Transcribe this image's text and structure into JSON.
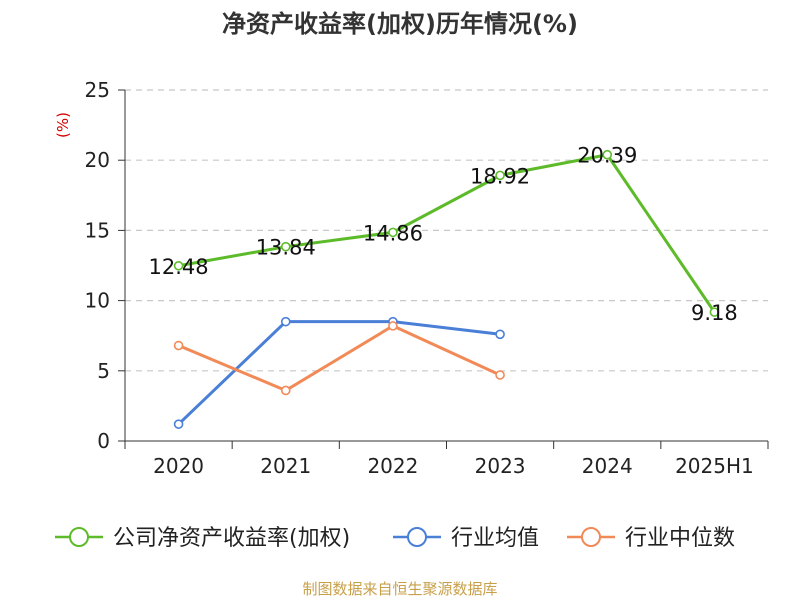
{
  "chart_data": {
    "type": "line",
    "title": "净资产收益率(加权)历年情况(%)",
    "ylabel": "(%)",
    "xlabel": "",
    "categories": [
      "2020",
      "2021",
      "2022",
      "2023",
      "2024",
      "2025H1"
    ],
    "ylim": [
      0,
      25
    ],
    "yticks": [
      0,
      5,
      10,
      15,
      20,
      25
    ],
    "grid": true,
    "legend_position": "bottom",
    "series": [
      {
        "name": "公司净资产收益率(加权)",
        "color": "#5dbb2a",
        "values": [
          12.48,
          13.84,
          14.86,
          18.92,
          20.39,
          9.18
        ],
        "data_labels": [
          "12.48",
          "13.84",
          "14.86",
          "18.92",
          "20.39",
          "9.18"
        ]
      },
      {
        "name": "行业均值",
        "color": "#4a7fd8",
        "values": [
          1.2,
          8.5,
          8.5,
          7.6,
          null,
          null
        ]
      },
      {
        "name": "行业中位数",
        "color": "#f28a57",
        "values": [
          6.8,
          3.6,
          8.2,
          4.7,
          null,
          null
        ]
      }
    ]
  },
  "source": "制图数据来自恒生聚源数据库"
}
